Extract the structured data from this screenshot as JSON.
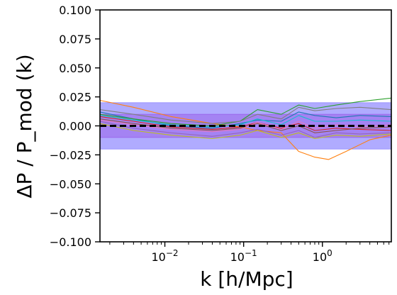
{
  "chart_data": {
    "type": "line",
    "title": "",
    "xlabel": "k [h/Mpc]",
    "ylabel": "ΔP / P_mod (k)",
    "xscale": "log",
    "xlim": [
      0.0015,
      7.5
    ],
    "ylim": [
      -0.1,
      0.1
    ],
    "x_ticks": [
      {
        "value": 0.01,
        "base": "10",
        "exp": "−2"
      },
      {
        "value": 0.1,
        "base": "10",
        "exp": "−1"
      },
      {
        "value": 1,
        "base": "10",
        "exp": "0"
      }
    ],
    "y_ticks": [
      "0.100",
      "0.075",
      "0.050",
      "0.025",
      "0.000",
      "−0.025",
      "−0.050",
      "−0.075",
      "−0.100"
    ],
    "grid": false,
    "bands": [
      {
        "y0": -0.02,
        "y1": 0.02,
        "color": "#8f87ff"
      },
      {
        "y0": -0.01,
        "y1": 0.01,
        "color": "#9b62ea"
      }
    ],
    "reference_line": {
      "y": 0.0,
      "style": "dashed",
      "color": "#000000"
    },
    "series": [
      {
        "color": "#1f77b4",
        "points": [
          [
            0.0015,
            0.012
          ],
          [
            0.004,
            0.006
          ],
          [
            0.012,
            0.0
          ],
          [
            0.04,
            -0.002
          ],
          [
            0.09,
            0.002
          ],
          [
            0.15,
            0.005
          ],
          [
            0.3,
            0.004
          ],
          [
            0.5,
            0.012
          ],
          [
            0.8,
            0.009
          ],
          [
            1.5,
            0.007
          ],
          [
            3,
            0.009
          ],
          [
            7.5,
            0.008
          ]
        ]
      },
      {
        "color": "#ff7f0e",
        "points": [
          [
            0.0015,
            0.022
          ],
          [
            0.004,
            0.016
          ],
          [
            0.012,
            0.008
          ],
          [
            0.04,
            0.002
          ],
          [
            0.09,
            -0.001
          ],
          [
            0.15,
            -0.004
          ],
          [
            0.3,
            -0.006
          ],
          [
            0.5,
            -0.022
          ],
          [
            0.8,
            -0.027
          ],
          [
            1.2,
            -0.029
          ],
          [
            2,
            -0.022
          ],
          [
            4,
            -0.012
          ],
          [
            7.5,
            -0.008
          ]
        ]
      },
      {
        "color": "#2ca02c",
        "points": [
          [
            0.0015,
            0.01
          ],
          [
            0.004,
            0.006
          ],
          [
            0.012,
            0.002
          ],
          [
            0.04,
            0.0
          ],
          [
            0.09,
            0.004
          ],
          [
            0.15,
            0.014
          ],
          [
            0.3,
            0.01
          ],
          [
            0.5,
            0.018
          ],
          [
            0.8,
            0.015
          ],
          [
            1.5,
            0.018
          ],
          [
            3,
            0.021
          ],
          [
            7.5,
            0.024
          ]
        ]
      },
      {
        "color": "#d62728",
        "points": [
          [
            0.0015,
            0.008
          ],
          [
            0.004,
            0.004
          ],
          [
            0.012,
            -0.001
          ],
          [
            0.04,
            -0.003
          ],
          [
            0.09,
            -0.001
          ],
          [
            0.15,
            0.003
          ],
          [
            0.3,
            -0.002
          ],
          [
            0.5,
            0.002
          ],
          [
            0.8,
            -0.004
          ],
          [
            1.5,
            -0.002
          ],
          [
            3,
            -0.003
          ],
          [
            7.5,
            -0.004
          ]
        ]
      },
      {
        "color": "#9467bd",
        "points": [
          [
            0.0015,
            0.004
          ],
          [
            0.004,
            -0.002
          ],
          [
            0.012,
            -0.006
          ],
          [
            0.04,
            -0.009
          ],
          [
            0.09,
            -0.006
          ],
          [
            0.15,
            -0.003
          ],
          [
            0.3,
            -0.008
          ],
          [
            0.5,
            -0.004
          ],
          [
            0.8,
            -0.01
          ],
          [
            1.5,
            -0.006
          ],
          [
            3,
            -0.007
          ],
          [
            7.5,
            -0.006
          ]
        ]
      },
      {
        "color": "#8c564b",
        "points": [
          [
            0.0015,
            0.006
          ],
          [
            0.004,
            0.002
          ],
          [
            0.012,
            -0.002
          ],
          [
            0.04,
            -0.004
          ],
          [
            0.09,
            -0.002
          ],
          [
            0.15,
            0.002
          ],
          [
            0.3,
            -0.004
          ],
          [
            0.5,
            0.0
          ],
          [
            0.8,
            -0.006
          ],
          [
            1.5,
            -0.004
          ],
          [
            3,
            -0.002
          ],
          [
            7.5,
            -0.001
          ]
        ]
      },
      {
        "color": "#e377c2",
        "points": [
          [
            0.0015,
            0.005
          ],
          [
            0.004,
            0.001
          ],
          [
            0.012,
            -0.003
          ],
          [
            0.04,
            -0.005
          ],
          [
            0.09,
            -0.003
          ],
          [
            0.15,
            0.003
          ],
          [
            0.3,
            -0.003
          ],
          [
            0.5,
            0.004
          ],
          [
            0.8,
            -0.002
          ],
          [
            1.5,
            0.001
          ],
          [
            3,
            -0.001
          ],
          [
            7.5,
            0.001
          ]
        ]
      },
      {
        "color": "#7f7f7f",
        "points": [
          [
            0.0015,
            0.014
          ],
          [
            0.004,
            0.01
          ],
          [
            0.012,
            0.005
          ],
          [
            0.04,
            0.002
          ],
          [
            0.09,
            0.004
          ],
          [
            0.15,
            0.01
          ],
          [
            0.3,
            0.006
          ],
          [
            0.5,
            0.016
          ],
          [
            0.8,
            0.013
          ],
          [
            1.5,
            0.015
          ],
          [
            3,
            0.016
          ],
          [
            7.5,
            0.014
          ]
        ]
      },
      {
        "color": "#bcbd22",
        "points": [
          [
            0.0015,
            0.002
          ],
          [
            0.004,
            -0.004
          ],
          [
            0.012,
            -0.008
          ],
          [
            0.04,
            -0.011
          ],
          [
            0.09,
            -0.008
          ],
          [
            0.15,
            -0.004
          ],
          [
            0.3,
            -0.01
          ],
          [
            0.5,
            -0.006
          ],
          [
            0.8,
            -0.011
          ],
          [
            1.5,
            -0.008
          ],
          [
            3,
            -0.009
          ],
          [
            7.5,
            -0.007
          ]
        ]
      },
      {
        "color": "#17becf",
        "points": [
          [
            0.0015,
            0.009
          ],
          [
            0.004,
            0.005
          ],
          [
            0.012,
            0.001
          ],
          [
            0.04,
            -0.001
          ],
          [
            0.09,
            0.001
          ],
          [
            0.15,
            0.006
          ],
          [
            0.3,
            0.001
          ],
          [
            0.5,
            0.009
          ],
          [
            0.8,
            0.004
          ],
          [
            1.5,
            0.004
          ],
          [
            3,
            0.005
          ],
          [
            7.5,
            0.004
          ]
        ]
      }
    ]
  }
}
